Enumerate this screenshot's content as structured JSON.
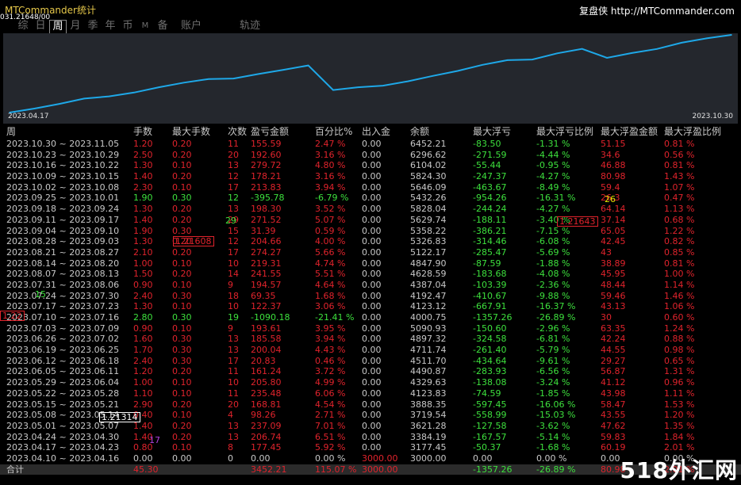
{
  "app": {
    "title": "MTCommander统计",
    "account": "031.21648/00",
    "brand": "复盘侠 http://MTCommander.com"
  },
  "tabs": [
    {
      "label": "综",
      "active": false
    },
    {
      "label": "日",
      "active": false
    },
    {
      "label": "周",
      "active": true
    },
    {
      "label": "月",
      "active": false
    },
    {
      "label": "季",
      "active": false
    },
    {
      "label": "年",
      "active": false
    },
    {
      "label": "币",
      "active": false
    },
    {
      "label": "M",
      "active": false,
      "small": true
    },
    {
      "label": "备",
      "active": false
    },
    {
      "label": "账户",
      "active": false,
      "wide": true
    },
    {
      "label": "轨迹",
      "active": false,
      "track": true
    }
  ],
  "chart_data": {
    "type": "line",
    "x_start_label": "2023.04.17",
    "x_end_label": "2023.10.30",
    "color": "#1ea8e8",
    "values": [
      3000,
      3177.45,
      3384.19,
      3621.28,
      3719.54,
      3888.35,
      4123.83,
      4329.63,
      4490.87,
      4511.7,
      4711.74,
      4897.32,
      5090.93,
      4000.75,
      4123.12,
      4192.47,
      4387.04,
      4628.59,
      4847.9,
      5122.17,
      5326.83,
      5358.22,
      5629.74,
      5828.04,
      5432.26,
      5646.09,
      5824.3,
      6104.02,
      6296.62,
      6452.21
    ]
  },
  "table": {
    "headers": [
      "周",
      "手数",
      "最大手数",
      "次数",
      "盈亏金额",
      "百分比%",
      "出入金",
      "余额",
      "最大浮亏",
      "最大浮亏比例",
      "最大浮盈金额",
      "最大浮盈比例"
    ],
    "rows": [
      [
        "2023.10.30 ~ 2023.11.05",
        "1.20",
        "0.20",
        "11",
        "155.59",
        "2.47 %",
        "0.00",
        "6452.21",
        "-83.50",
        "-1.31 %",
        "51.15",
        "0.81 %"
      ],
      [
        "2023.10.23 ~ 2023.10.29",
        "2.50",
        "0.20",
        "20",
        "192.60",
        "3.16 %",
        "0.00",
        "6296.62",
        "-271.59",
        "-4.44 %",
        "34.6",
        "0.56 %"
      ],
      [
        "2023.10.16 ~ 2023.10.22",
        "1.30",
        "0.10",
        "13",
        "279.72",
        "4.80 %",
        "0.00",
        "6104.02",
        "-55.44",
        "-0.95 %",
        "46.88",
        "0.81 %"
      ],
      [
        "2023.10.09 ~ 2023.10.15",
        "1.40",
        "0.20",
        "12",
        "178.21",
        "3.16 %",
        "0.00",
        "5824.30",
        "-247.37",
        "-4.27 %",
        "80.98",
        "1.43 %"
      ],
      [
        "2023.10.02 ~ 2023.10.08",
        "2.30",
        "0.10",
        "17",
        "213.83",
        "3.94 %",
        "0.00",
        "5646.09",
        "-463.67",
        "-8.49 %",
        "59.4",
        "1.07 %"
      ],
      [
        "2023.09.25 ~ 2023.10.01",
        "1.90",
        "0.30",
        "12",
        "-395.78",
        "-6.79 %",
        "0.00",
        "5432.26",
        "-954.26",
        "-16.31 %",
        "26.3",
        "0.47 %"
      ],
      [
        "2023.09.18 ~ 2023.09.24",
        "1.30",
        "0.20",
        "13",
        "198.30",
        "3.52 %",
        "0.00",
        "5828.04",
        "-244.24",
        "-4.27 %",
        "64.14",
        "1.13 %"
      ],
      [
        "2023.09.11 ~ 2023.09.17",
        "1.40",
        "0.20",
        "29",
        "271.52",
        "5.07 %",
        "0.00",
        "5629.74",
        "-188.11",
        "-3.40 %",
        "37.14",
        "0.68 %"
      ],
      [
        "2023.09.04 ~ 2023.09.10",
        "1.90",
        "0.30",
        "15",
        "31.39",
        "0.59 %",
        "0.00",
        "5358.22",
        "-386.21",
        "-7.15 %",
        "65.05",
        "1.22 %"
      ],
      [
        "2023.08.28 ~ 2023.09.03",
        "1.30",
        "0.20",
        "12",
        "204.66",
        "4.00 %",
        "0.00",
        "5326.83",
        "-314.46",
        "-6.08 %",
        "42.45",
        "0.82 %"
      ],
      [
        "2023.08.21 ~ 2023.08.27",
        "2.10",
        "0.20",
        "17",
        "274.27",
        "5.66 %",
        "0.00",
        "5122.17",
        "-285.47",
        "-5.69 %",
        "43",
        "0.85 %"
      ],
      [
        "2023.08.14 ~ 2023.08.20",
        "1.00",
        "0.10",
        "10",
        "219.31",
        "4.74 %",
        "0.00",
        "4847.90",
        "-87.59",
        "-1.88 %",
        "38.89",
        "0.81 %"
      ],
      [
        "2023.08.07 ~ 2023.08.13",
        "1.50",
        "0.20",
        "14",
        "241.55",
        "5.51 %",
        "0.00",
        "4628.59",
        "-183.68",
        "-4.08 %",
        "45.95",
        "1.00 %"
      ],
      [
        "2023.07.31 ~ 2023.08.06",
        "0.90",
        "0.10",
        "9",
        "194.57",
        "4.64 %",
        "0.00",
        "4387.04",
        "-103.39",
        "-2.36 %",
        "48.44",
        "1.14 %"
      ],
      [
        "2023.07.24 ~ 2023.07.30",
        "2.40",
        "0.30",
        "18",
        "69.35",
        "1.68 %",
        "0.00",
        "4192.47",
        "-410.67",
        "-9.88 %",
        "59.46",
        "1.46 %"
      ],
      [
        "2023.07.17 ~ 2023.07.23",
        "1.30",
        "0.10",
        "10",
        "122.37",
        "3.06 %",
        "0.00",
        "4123.12",
        "-667.91",
        "-16.37 %",
        "43.13",
        "1.06 %"
      ],
      [
        "2023.07.10 ~ 2023.07.16",
        "2.80",
        "0.30",
        "19",
        "-1090.18",
        "-21.41 %",
        "0.00",
        "4000.75",
        "-1357.26",
        "-26.89 %",
        "30",
        "0.60 %"
      ],
      [
        "2023.07.03 ~ 2023.07.09",
        "0.90",
        "0.10",
        "9",
        "193.61",
        "3.95 %",
        "0.00",
        "5090.93",
        "-150.60",
        "-2.96 %",
        "63.35",
        "1.24 %"
      ],
      [
        "2023.06.26 ~ 2023.07.02",
        "1.60",
        "0.30",
        "13",
        "185.58",
        "3.94 %",
        "0.00",
        "4897.32",
        "-324.58",
        "-6.81 %",
        "42.24",
        "0.88 %"
      ],
      [
        "2023.06.19 ~ 2023.06.25",
        "1.70",
        "0.30",
        "13",
        "200.04",
        "4.43 %",
        "0.00",
        "4711.74",
        "-261.40",
        "-5.79 %",
        "44.55",
        "0.98 %"
      ],
      [
        "2023.06.12 ~ 2023.06.18",
        "2.40",
        "0.30",
        "17",
        "20.83",
        "0.46 %",
        "0.00",
        "4511.70",
        "-434.64",
        "-9.61 %",
        "29.27",
        "0.65 %"
      ],
      [
        "2023.06.05 ~ 2023.06.11",
        "1.20",
        "0.20",
        "11",
        "161.24",
        "3.72 %",
        "0.00",
        "4490.87",
        "-283.93",
        "-6.56 %",
        "56.87",
        "1.31 %"
      ],
      [
        "2023.05.29 ~ 2023.06.04",
        "1.00",
        "0.10",
        "10",
        "205.80",
        "4.99 %",
        "0.00",
        "4329.63",
        "-138.08",
        "-3.24 %",
        "41.12",
        "0.96 %"
      ],
      [
        "2023.05.22 ~ 2023.05.28",
        "1.10",
        "0.10",
        "11",
        "235.48",
        "6.06 %",
        "0.00",
        "4123.83",
        "-74.59",
        "-1.85 %",
        "43.98",
        "1.11 %"
      ],
      [
        "2023.05.15 ~ 2023.05.21",
        "2.90",
        "0.20",
        "20",
        "168.81",
        "4.54 %",
        "0.00",
        "3888.35",
        "-597.45",
        "-16.06 %",
        "58.47",
        "1.53 %"
      ],
      [
        "2023.05.08 ~ 2023.05.14",
        "0.40",
        "0.10",
        "4",
        "98.26",
        "2.71 %",
        "0.00",
        "3719.54",
        "-558.99",
        "-15.03 %",
        "43.55",
        "1.20 %"
      ],
      [
        "2023.05.01 ~ 2023.05.07",
        "1.40",
        "0.20",
        "13",
        "237.09",
        "7.01 %",
        "0.00",
        "3621.28",
        "-127.58",
        "-3.62 %",
        "47.62",
        "1.35 %"
      ],
      [
        "2023.04.24 ~ 2023.04.30",
        "1.40",
        "0.20",
        "13",
        "206.74",
        "6.51 %",
        "0.00",
        "3384.19",
        "-167.57",
        "-5.14 %",
        "59.83",
        "1.84 %"
      ],
      [
        "2023.04.17 ~ 2023.04.23",
        "0.80",
        "0.10",
        "8",
        "177.45",
        "5.92 %",
        "0.00",
        "3177.45",
        "-50.37",
        "-1.68 %",
        "60.19",
        "2.01 %"
      ],
      [
        "2023.04.10 ~ 2023.04.16",
        "0.00",
        "0.00",
        "0",
        "0.00",
        "0.00 %",
        "3000.00",
        "3000.00",
        "0.00",
        "0.00 %",
        "0.00",
        "0.00 %"
      ]
    ],
    "total": [
      "合计",
      "45.30",
      "",
      "",
      "3452.21",
      "115.07 %",
      "3000.00",
      "",
      "-1357.26",
      "-26.89 %",
      "80.98",
      "2.01 %"
    ]
  },
  "overlays": [
    {
      "text": "1.21608",
      "style": "box-red"
    },
    {
      "text": "1.21643",
      "style": "box-red"
    },
    {
      "text": "1.21314",
      "style": "box-white"
    },
    {
      "text": "1.22",
      "style": "box-red"
    },
    {
      "text": "29",
      "color": "#3de03d"
    },
    {
      "text": "15",
      "color": "#3de03d"
    },
    {
      "text": "17",
      "color": "#b040e0"
    },
    {
      "text": "26",
      "color": "#e6e600"
    }
  ],
  "watermark": "518外汇网"
}
